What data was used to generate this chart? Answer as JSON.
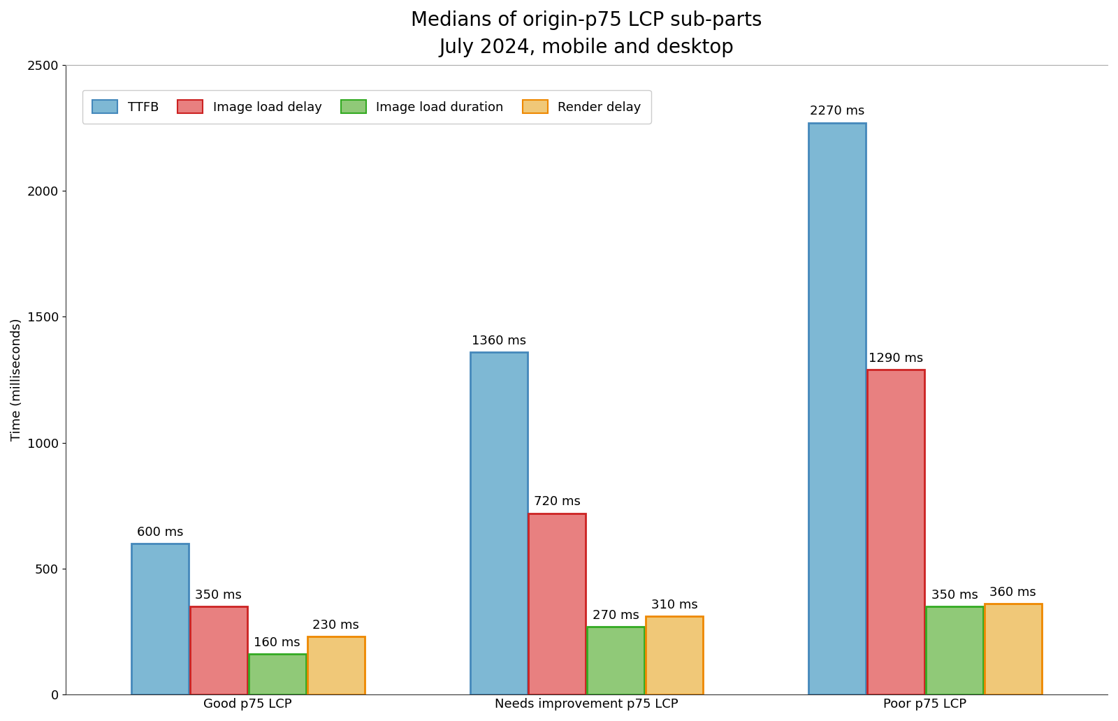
{
  "title": "Medians of origin-p75 LCP sub-parts",
  "subtitle": "July 2024, mobile and desktop",
  "categories": [
    "Good p75 LCP",
    "Needs improvement p75 LCP",
    "Poor p75 LCP"
  ],
  "series": {
    "TTFB": [
      600,
      1360,
      2270
    ],
    "Image load delay": [
      350,
      720,
      1290
    ],
    "Image load duration": [
      160,
      270,
      350
    ],
    "Render delay": [
      230,
      310,
      360
    ]
  },
  "bar_colors": {
    "TTFB": "#7eb8d4",
    "Image load delay": "#e88080",
    "Image load duration": "#90c978",
    "Render delay": "#f0c878"
  },
  "bar_edge_colors": {
    "TTFB": "#4488bb",
    "Image load delay": "#cc2222",
    "Image load duration": "#33aa22",
    "Render delay": "#ee8800"
  },
  "ylabel": "Time (milliseconds)",
  "ylim": [
    0,
    2500
  ],
  "yticks": [
    0,
    500,
    1000,
    1500,
    2000,
    2500
  ],
  "title_fontsize": 20,
  "subtitle_fontsize": 14,
  "label_fontsize": 13,
  "tick_fontsize": 13,
  "bar_label_fontsize": 13,
  "legend_fontsize": 13,
  "background_color": "#ffffff"
}
